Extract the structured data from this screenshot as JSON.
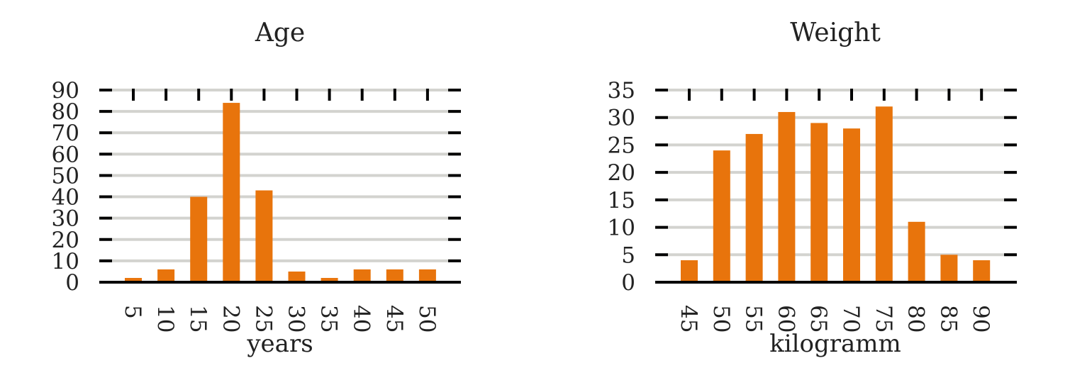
{
  "chart_data": [
    {
      "type": "bar",
      "title": "Age",
      "xlabel": "years",
      "ylabel": "",
      "categories": [
        "5",
        "10",
        "15",
        "20",
        "25",
        "30",
        "35",
        "40",
        "45",
        "50"
      ],
      "values": [
        2,
        6,
        40,
        84,
        43,
        5,
        2,
        6,
        6,
        6
      ],
      "ylim": [
        0,
        90
      ],
      "yticks": [
        "0",
        "10",
        "20",
        "30",
        "40",
        "50",
        "60",
        "70",
        "80",
        "90"
      ],
      "grid": true,
      "bar_color": "#E8740C"
    },
    {
      "type": "bar",
      "title": "Weight",
      "xlabel": "kilogramm",
      "ylabel": "",
      "categories": [
        "45",
        "50",
        "55",
        "60",
        "65",
        "70",
        "75",
        "80",
        "85",
        "90"
      ],
      "values": [
        4,
        24,
        27,
        31,
        29,
        28,
        32,
        11,
        5,
        4
      ],
      "ylim": [
        0,
        35
      ],
      "yticks": [
        "0",
        "5",
        "10",
        "15",
        "20",
        "25",
        "30",
        "35"
      ],
      "grid": true,
      "bar_color": "#E8740C"
    }
  ],
  "colors": {
    "bar": "#E8740C",
    "grid": "#D3D3CF",
    "axis": "#000000",
    "text": "#222222"
  }
}
